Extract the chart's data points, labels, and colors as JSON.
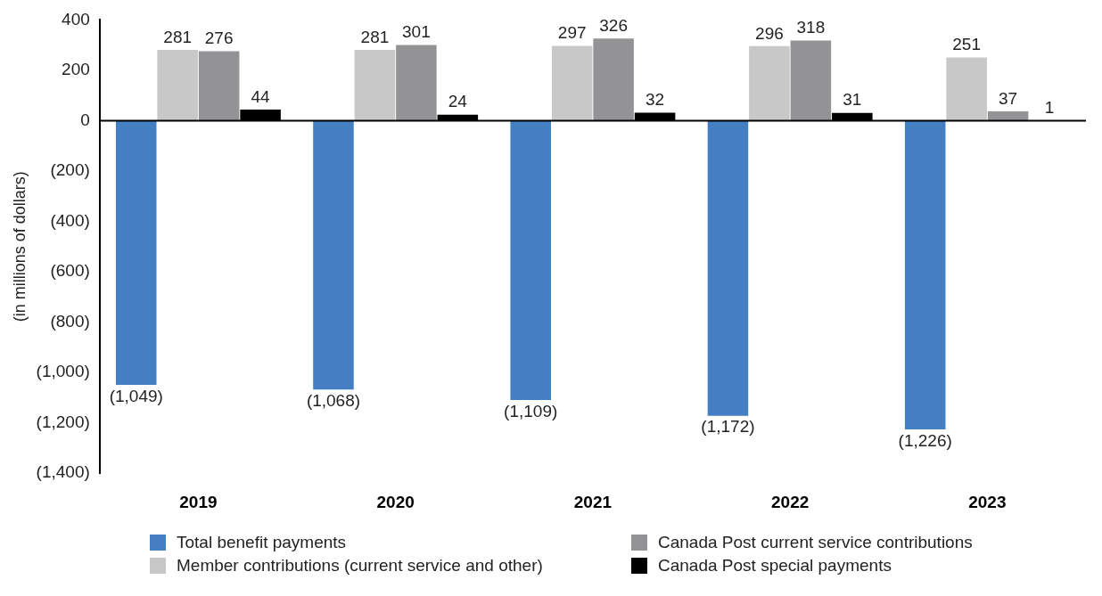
{
  "chart_data": {
    "type": "bar",
    "ylabel": "(in millions of dollars)",
    "categories": [
      "2019",
      "2020",
      "2021",
      "2022",
      "2023"
    ],
    "ylim": [
      -1400,
      400
    ],
    "yticks": [
      {
        "value": -1400,
        "label": "(1,400)"
      },
      {
        "value": -1200,
        "label": "(1,200)"
      },
      {
        "value": -1000,
        "label": "(1,000)"
      },
      {
        "value": -800,
        "label": "(800)"
      },
      {
        "value": -600,
        "label": "(600)"
      },
      {
        "value": -400,
        "label": "(400)"
      },
      {
        "value": -200,
        "label": "(200)"
      },
      0,
      200,
      400
    ],
    "grid": false,
    "legend": "bottom",
    "ref_lines": [
      {
        "axis": "y",
        "value": 0,
        "color": "#000000"
      }
    ],
    "series": [
      {
        "name": "Total benefit payments",
        "color": "#447fc4",
        "values": [
          -1049,
          -1068,
          -1109,
          -1172,
          -1226
        ],
        "value_labels": [
          "(1,049)",
          "(1,068)",
          "(1,109)",
          "(1,172)",
          "(1,226)"
        ]
      },
      {
        "name": "Member contributions (current service and other)",
        "color": "#c8c8c9",
        "values": [
          281,
          281,
          297,
          296,
          251
        ],
        "value_labels": [
          "281",
          "281",
          "297",
          "296",
          "251"
        ]
      },
      {
        "name": "Canada Post current service contributions",
        "color": "#939396",
        "values": [
          276,
          301,
          326,
          318,
          37
        ],
        "value_labels": [
          "276",
          "301",
          "326",
          "318",
          "37"
        ]
      },
      {
        "name": "Canada Post special payments",
        "color": "#000000",
        "values": [
          44,
          24,
          32,
          31,
          1
        ],
        "value_labels": [
          "44",
          "24",
          "32",
          "31",
          "1"
        ]
      }
    ]
  }
}
